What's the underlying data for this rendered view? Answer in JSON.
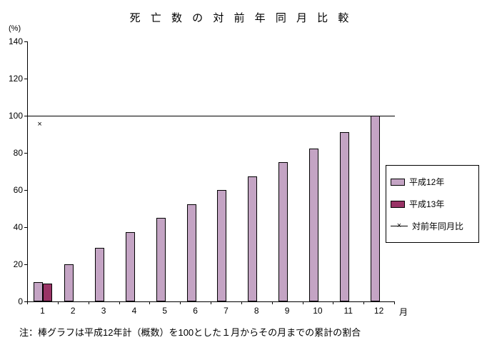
{
  "title": "死 亡 数 の 対 前 年 同 月 比 較",
  "y_axis_unit": "(%)",
  "x_axis_unit": "月",
  "note": "注：棒グラフは平成12年計（概数）を100とした１月からその月までの累計の割合",
  "colors": {
    "heisei12_bar": "#c4a4c4",
    "heisei13_bar": "#993366",
    "axis": "#000000"
  },
  "legend": [
    {
      "label": "平成12年",
      "type": "box",
      "color": "#c4a4c4"
    },
    {
      "label": "平成13年",
      "type": "box",
      "color": "#993366"
    },
    {
      "label": "対前年同月比",
      "type": "line",
      "marker": "×"
    }
  ],
  "chart_data": {
    "type": "bar",
    "title": "死亡数の対前年同月比較",
    "categories": [
      "1",
      "2",
      "3",
      "4",
      "5",
      "6",
      "7",
      "8",
      "9",
      "10",
      "11",
      "12"
    ],
    "xlabel": "月",
    "ylabel": "(%)",
    "ylim": [
      0,
      140
    ],
    "yticks": [
      0,
      20,
      40,
      60,
      80,
      100,
      120,
      140
    ],
    "reference_line": 100,
    "series": [
      {
        "name": "平成12年",
        "type": "bar",
        "color": "#c4a4c4",
        "values": [
          10.5,
          20,
          29,
          37.5,
          45,
          52.5,
          60,
          67.5,
          75,
          82.5,
          91,
          100
        ]
      },
      {
        "name": "平成13年",
        "type": "bar",
        "color": "#993366",
        "values": [
          9.5,
          null,
          null,
          null,
          null,
          null,
          null,
          null,
          null,
          null,
          null,
          null
        ]
      },
      {
        "name": "対前年同月比",
        "type": "scatter",
        "marker": "×",
        "values": [
          95,
          null,
          null,
          null,
          null,
          null,
          null,
          null,
          null,
          null,
          null,
          null
        ]
      }
    ]
  }
}
